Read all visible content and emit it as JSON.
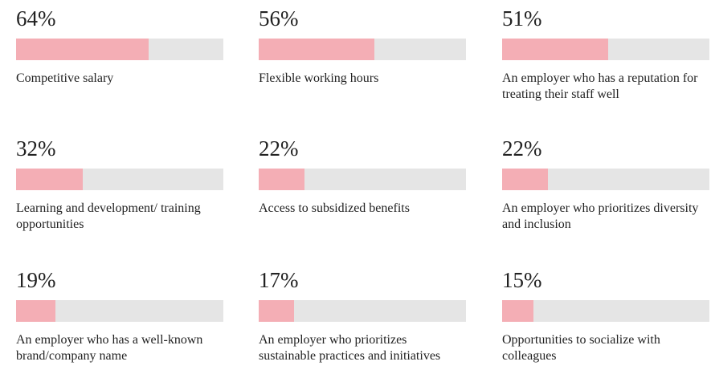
{
  "chart_data": {
    "type": "bar",
    "categories": [
      "Competitive salary",
      "Flexible working hours",
      "An employer who has a reputation for treating their staff well",
      "Learning and development/ training opportunities",
      "Access to subsidized benefits",
      "An employer who prioritizes diversity and inclusion",
      "An employer who has a well-known brand/company name",
      "An employer who prioritizes sustainable practices and initiatives",
      "Opportunities to socialize with colleagues"
    ],
    "values": [
      64,
      56,
      51,
      32,
      22,
      22,
      19,
      17,
      15
    ],
    "value_labels": [
      "64%",
      "56%",
      "51%",
      "32%",
      "22%",
      "22%",
      "19%",
      "17%",
      "15%"
    ],
    "color": "#f4aeb5",
    "track_color": "#e5e5e5",
    "xlim": [
      0,
      100
    ]
  }
}
